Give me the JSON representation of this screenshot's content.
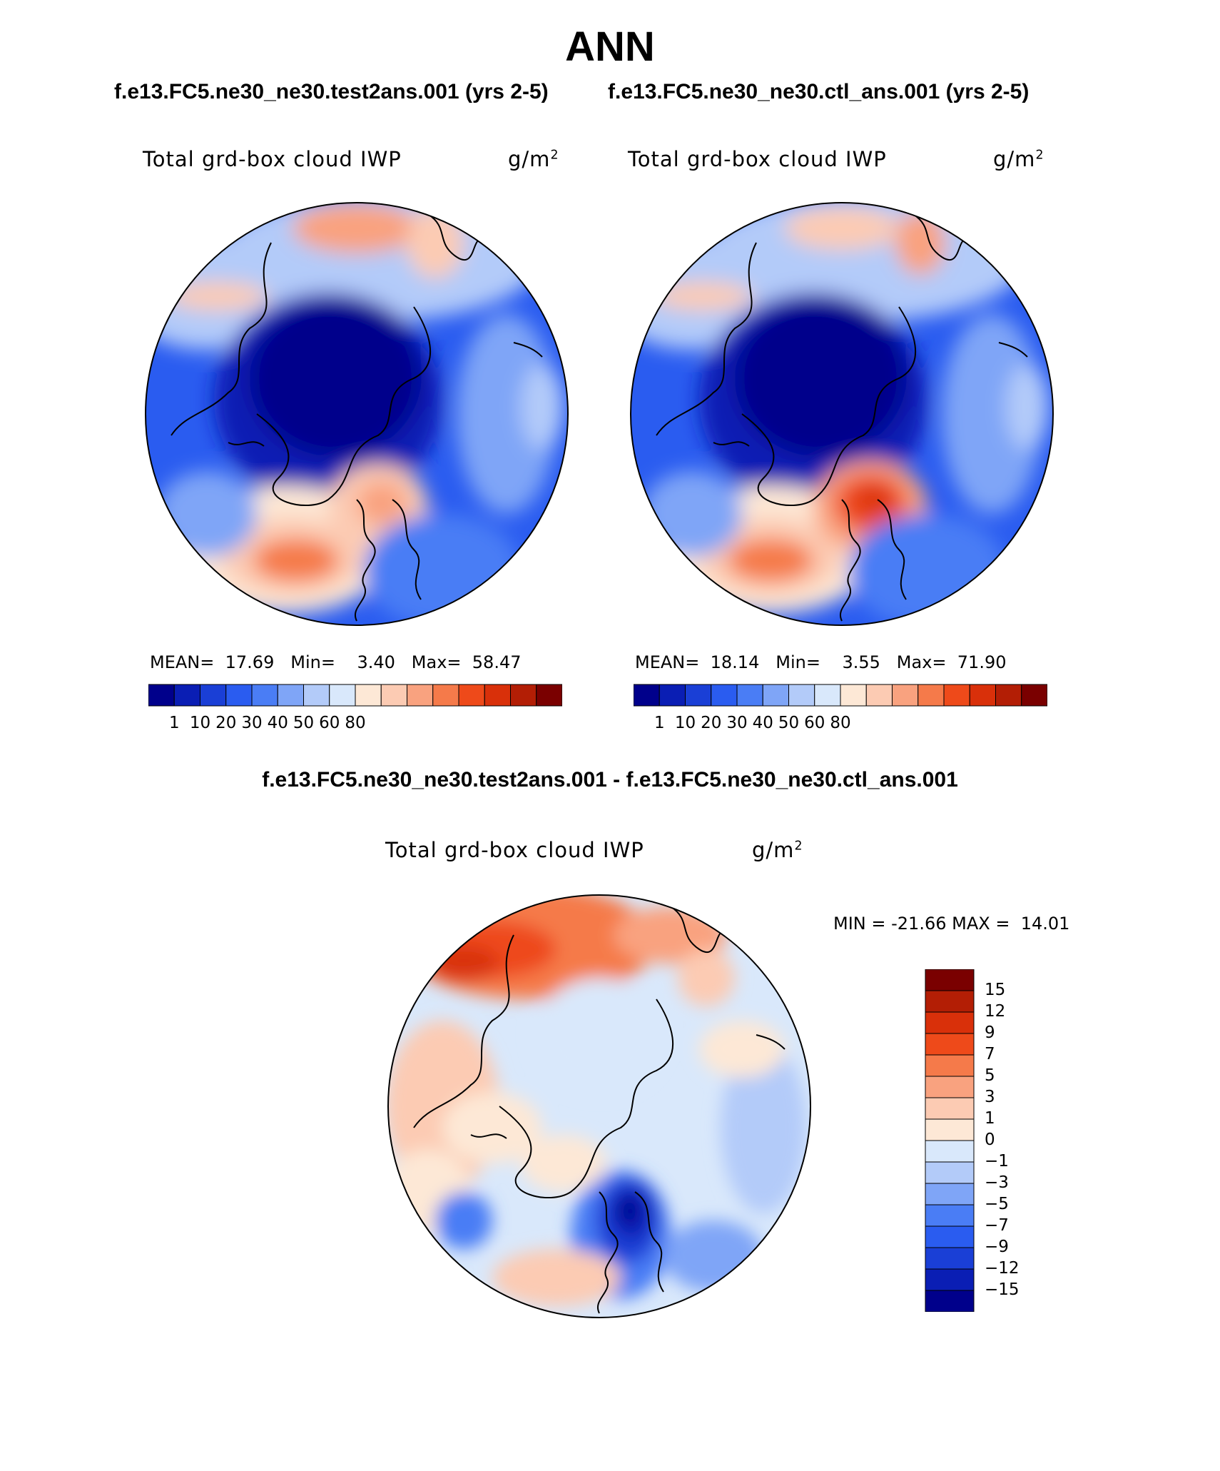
{
  "title": "ANN",
  "case_titles": {
    "left": "f.e13.FC5.ne30_ne30.test2ans.001 (yrs 2-5)",
    "right": "f.e13.FC5.ne30_ne30.ctl_ans.001 (yrs 2-5)"
  },
  "diff_title": "f.e13.FC5.ne30_ne30.test2ans.001 - f.e13.FC5.ne30_ne30.ctl_ans.001",
  "chart_data": [
    {
      "type": "map",
      "projection": "north-polar-stereographic",
      "variable": "Total grd-box cloud IWP",
      "units": "g/m",
      "units_superscript": "2",
      "stats": {
        "mean_label": "MEAN=",
        "mean": "17.69",
        "min_label": "Min=",
        "min": "3.40",
        "max_label": "Max=",
        "max": "58.47"
      },
      "colorbar_ticks": [
        "1",
        "10",
        "20",
        "30",
        "40",
        "50",
        "60",
        "80"
      ],
      "colors": [
        "#00008b",
        "#0a1eb4",
        "#1a3fd6",
        "#2a5cf0",
        "#4a7df5",
        "#7fa5f7",
        "#b3cbf9",
        "#d9e8fb",
        "#fde8d6",
        "#fccbb3",
        "#f9a27f",
        "#f57a4a",
        "#ee4a1a",
        "#d9300a",
        "#b31e05",
        "#7a0000"
      ]
    },
    {
      "type": "map",
      "projection": "north-polar-stereographic",
      "variable": "Total grd-box cloud IWP",
      "units": "g/m",
      "units_superscript": "2",
      "stats": {
        "mean_label": "MEAN=",
        "mean": "18.14",
        "min_label": "Min=",
        "min": "3.55",
        "max_label": "Max=",
        "max": "71.90"
      },
      "colorbar_ticks": [
        "1",
        "10",
        "20",
        "30",
        "40",
        "50",
        "60",
        "80"
      ],
      "colors": [
        "#00008b",
        "#0a1eb4",
        "#1a3fd6",
        "#2a5cf0",
        "#4a7df5",
        "#7fa5f7",
        "#b3cbf9",
        "#d9e8fb",
        "#fde8d6",
        "#fccbb3",
        "#f9a27f",
        "#f57a4a",
        "#ee4a1a",
        "#d9300a",
        "#b31e05",
        "#7a0000"
      ]
    },
    {
      "type": "map",
      "projection": "north-polar-stereographic",
      "variable": "Total grd-box cloud IWP",
      "units": "g/m",
      "units_superscript": "2",
      "stats": {
        "min_label": "MIN =",
        "min": "-21.66",
        "max_label": "MAX =",
        "max": "14.01"
      },
      "colorbar_ticks": [
        "15",
        "12",
        "9",
        "7",
        "5",
        "3",
        "1",
        "0",
        "−1",
        "−3",
        "−5",
        "−7",
        "−9",
        "−12",
        "−15"
      ],
      "colors": [
        "#7a0000",
        "#b31e05",
        "#d9300a",
        "#ee4a1a",
        "#f57a4a",
        "#f9a27f",
        "#fccbb3",
        "#fde8d6",
        "#d9e8fb",
        "#b3cbf9",
        "#7fa5f7",
        "#4a7df5",
        "#2a5cf0",
        "#1a3fd6",
        "#0a1eb4",
        "#00008b"
      ]
    }
  ]
}
